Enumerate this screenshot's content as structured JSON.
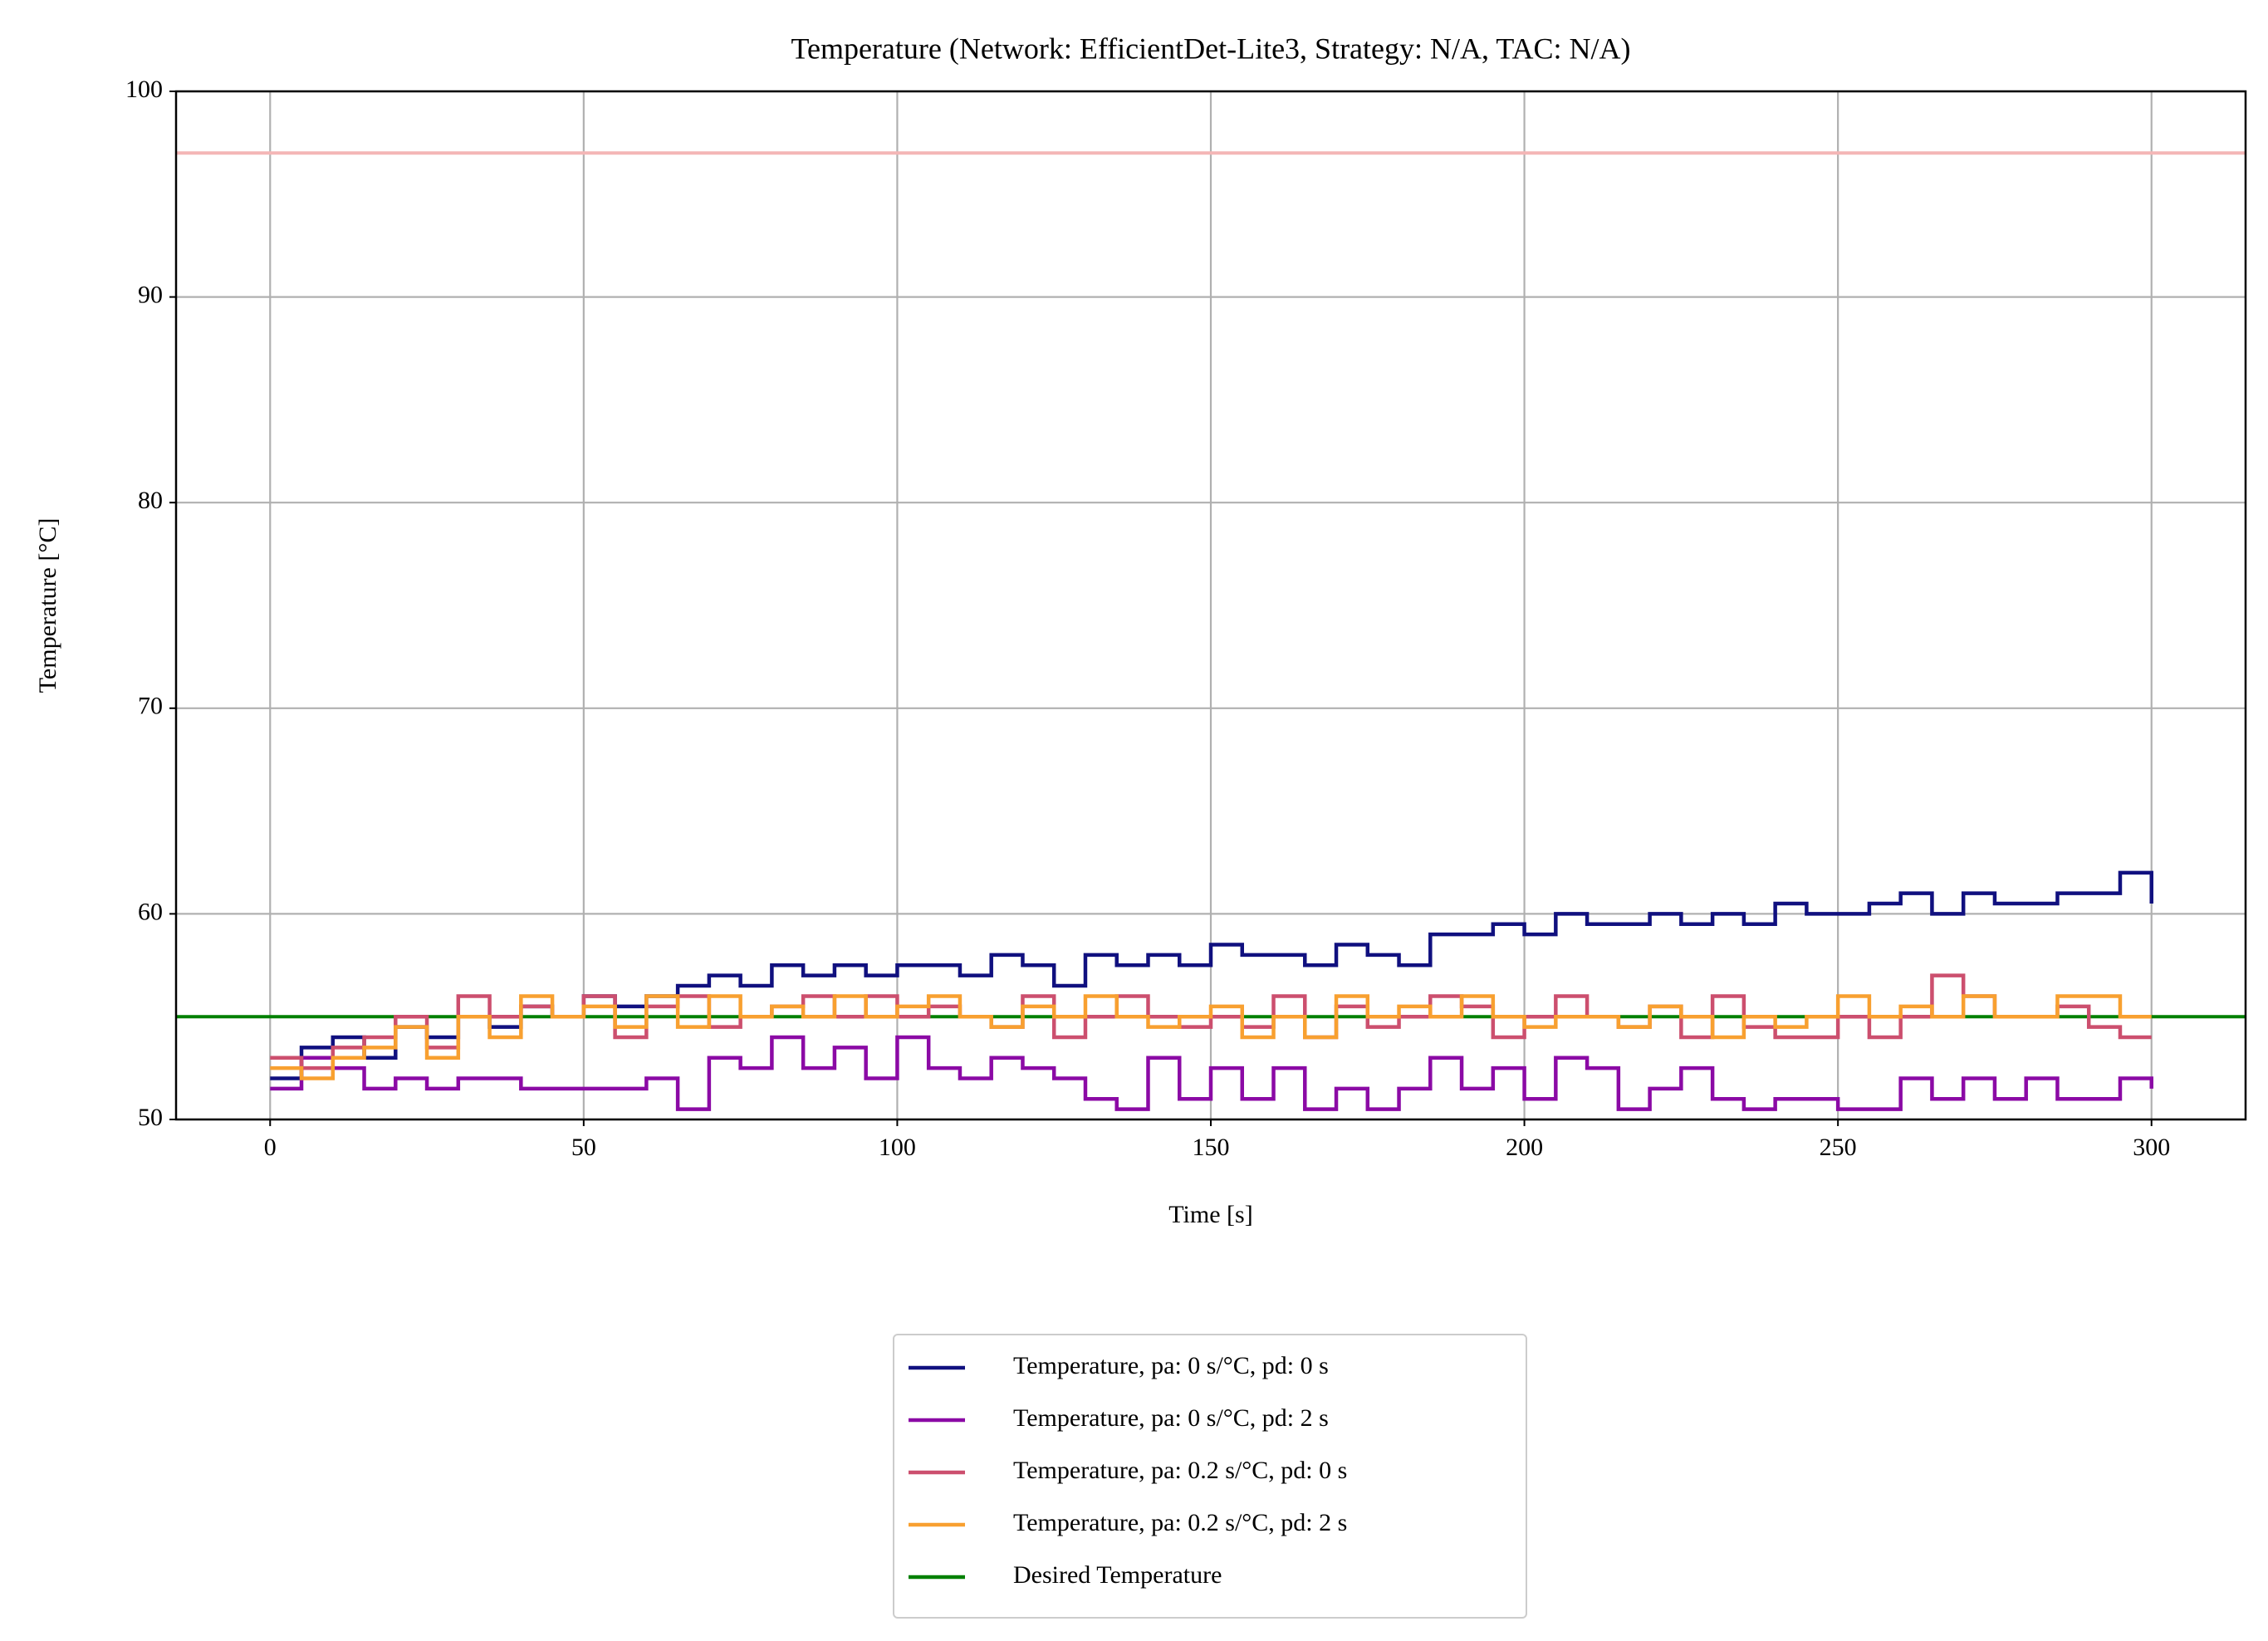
{
  "chart_data": {
    "type": "line",
    "step": "post",
    "title": "Temperature (Network: EfficientDet-Lite3, Strategy: N/A, TAC: N/A)",
    "x_label": "Time [s]",
    "y_label": "Temperature [°C]",
    "x": [
      0,
      5,
      10,
      15,
      20,
      25,
      30,
      35,
      40,
      45,
      50,
      55,
      60,
      65,
      70,
      75,
      80,
      85,
      90,
      95,
      100,
      105,
      110,
      115,
      120,
      125,
      130,
      135,
      140,
      145,
      150,
      155,
      160,
      165,
      170,
      175,
      180,
      185,
      190,
      195,
      200,
      205,
      210,
      215,
      220,
      225,
      230,
      235,
      240,
      245,
      250,
      255,
      260,
      265,
      270,
      275,
      280,
      285,
      290,
      295,
      300
    ],
    "series": [
      {
        "name": "Temperature, pa: 0 s/°C, pd: 0 s",
        "color": "#10107f",
        "values": [
          52,
          53.5,
          54,
          53,
          54.5,
          54,
          55,
          54.5,
          55.5,
          55,
          56,
          55.5,
          56,
          56.5,
          57,
          56.5,
          57.5,
          57,
          57.5,
          57,
          57.5,
          57.5,
          57,
          58,
          57.5,
          56.5,
          58,
          57.5,
          58,
          57.5,
          58.5,
          58,
          58,
          57.5,
          58.5,
          58,
          57.5,
          59,
          59,
          59.5,
          59,
          60,
          59.5,
          59.5,
          60,
          59.5,
          60,
          59.5,
          60.5,
          60,
          60,
          60.5,
          61,
          60,
          61,
          60.5,
          60.5,
          61,
          61,
          62,
          60.5
        ]
      },
      {
        "name": "Temperature, pa: 0 s/°C, pd: 2 s",
        "color": "#8b0aa5",
        "values": [
          51.5,
          53,
          52.5,
          51.5,
          52,
          51.5,
          52,
          52,
          51.5,
          51.5,
          51.5,
          51.5,
          52,
          50.5,
          53,
          52.5,
          54,
          52.5,
          53.5,
          52,
          54,
          52.5,
          52,
          53,
          52.5,
          52,
          51,
          50.5,
          53,
          51,
          52.5,
          51,
          52.5,
          50.5,
          51.5,
          50.5,
          51.5,
          53,
          51.5,
          52.5,
          51,
          53,
          52.5,
          50.5,
          51.5,
          52.5,
          51,
          50.5,
          51,
          51,
          50.5,
          50.5,
          52,
          51,
          52,
          51,
          52,
          51,
          51,
          52,
          51.5
        ]
      },
      {
        "name": "Temperature, pa: 0.2 s/°C, pd: 0 s",
        "color": "#cc4f6e",
        "values": [
          53,
          52.5,
          53.5,
          54,
          55,
          53.5,
          56,
          55,
          55.5,
          55,
          56,
          54,
          55.5,
          56,
          54.5,
          55,
          55.5,
          56,
          55,
          56,
          55,
          55.5,
          55,
          54.5,
          56,
          54,
          55,
          56,
          55,
          54.5,
          55,
          54.5,
          56,
          54,
          55.5,
          54.5,
          55,
          56,
          55.5,
          54,
          55,
          56,
          55,
          54.5,
          55.5,
          54,
          56,
          54.5,
          54,
          54,
          55,
          54,
          55,
          57,
          56,
          55,
          55,
          55.5,
          54.5,
          54,
          54
        ]
      },
      {
        "name": "Temperature, pa: 0.2 s/°C, pd: 2 s",
        "color": "#f8a030",
        "values": [
          52.5,
          52,
          53,
          53.5,
          54.5,
          53,
          55,
          54,
          56,
          55,
          55.5,
          54.5,
          56,
          54.5,
          56,
          55,
          55.5,
          55,
          56,
          55,
          55.5,
          56,
          55,
          54.5,
          55.5,
          55,
          56,
          55,
          54.5,
          55,
          55.5,
          54,
          55,
          54,
          56,
          55,
          55.5,
          55,
          56,
          55,
          54.5,
          55,
          55,
          54.5,
          55.5,
          55,
          54,
          55,
          54.5,
          55,
          56,
          55,
          55.5,
          55,
          56,
          55,
          55,
          56,
          56,
          55,
          55
        ]
      }
    ],
    "hlines": [
      {
        "name": "Desired Temperature",
        "color": "#008000",
        "y": 55
      },
      {
        "color": "#f4b6b6",
        "y": 97
      }
    ],
    "xlim": [
      -15,
      315
    ],
    "ylim": [
      50,
      100
    ],
    "xticks": [
      0,
      50,
      100,
      150,
      200,
      250,
      300
    ],
    "yticks": [
      50,
      60,
      70,
      80,
      90,
      100
    ],
    "grid": true,
    "legend": "below"
  }
}
